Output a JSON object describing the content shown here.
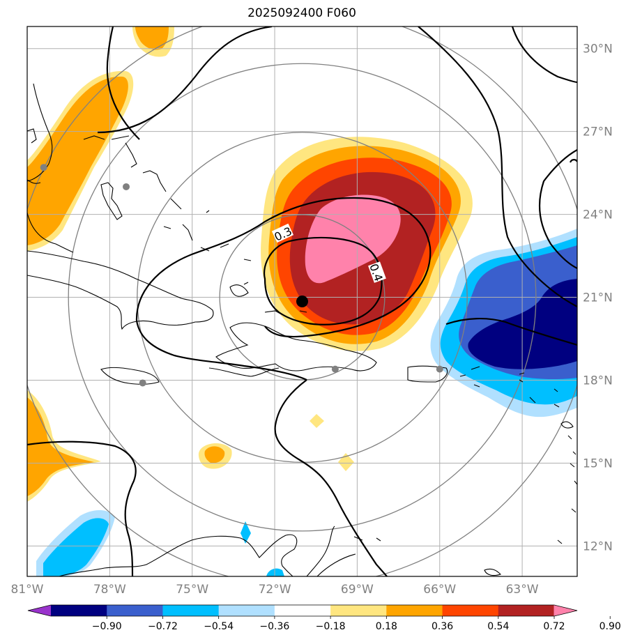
{
  "title": "2025092400 F060",
  "map": {
    "projection": "lat-lon",
    "lon_range": [
      -81,
      -61
    ],
    "lat_range": [
      10.9,
      30.8
    ],
    "lon_ticks": [
      {
        "value": -81,
        "label": "81°W"
      },
      {
        "value": -78,
        "label": "78°W"
      },
      {
        "value": -75,
        "label": "75°W"
      },
      {
        "value": -72,
        "label": "72°W"
      },
      {
        "value": -69,
        "label": "69°W"
      },
      {
        "value": -66,
        "label": "66°W"
      },
      {
        "value": -63,
        "label": "63°W"
      }
    ],
    "lat_ticks": [
      {
        "value": 12,
        "label": "12°N"
      },
      {
        "value": 15,
        "label": "15°N"
      },
      {
        "value": 18,
        "label": "18°N"
      },
      {
        "value": 21,
        "label": "21°N"
      },
      {
        "value": 24,
        "label": "24°N"
      },
      {
        "value": 27,
        "label": "27°N"
      },
      {
        "value": 30,
        "label": "30°N"
      }
    ],
    "grid": true,
    "storm_center": {
      "lon": -71.0,
      "lat": 20.85
    },
    "range_rings_deg": [
      3,
      6,
      8.5,
      10.5
    ],
    "ring_center": {
      "lon": -71.0,
      "lat": 21.0
    },
    "contour_labels": [
      {
        "text": "0.3",
        "lon": -71.7,
        "lat": 23.3,
        "rotate": -25
      },
      {
        "text": "0.4",
        "lon": -68.3,
        "lat": 21.9,
        "rotate": 70
      }
    ],
    "grey_points": [
      {
        "lon": -80.4,
        "lat": 25.7
      },
      {
        "lon": -77.4,
        "lat": 25.0
      },
      {
        "lon": -76.8,
        "lat": 17.9
      },
      {
        "lon": -69.8,
        "lat": 18.4
      },
      {
        "lon": -66.0,
        "lat": 18.4
      }
    ]
  },
  "colorbar": {
    "colors": [
      "#9933cc",
      "#000080",
      "#3a5fcd",
      "#00bfff",
      "#b0e0ff",
      "#ffffff",
      "#ffe680",
      "#ffa500",
      "#ff4500",
      "#b22222",
      "#ff82ab"
    ],
    "tick_labels": [
      "−0.90",
      "−0.72",
      "−0.54",
      "−0.36",
      "−0.18",
      "0.18",
      "0.36",
      "0.54",
      "0.72",
      "0.90"
    ],
    "extend": "both"
  }
}
